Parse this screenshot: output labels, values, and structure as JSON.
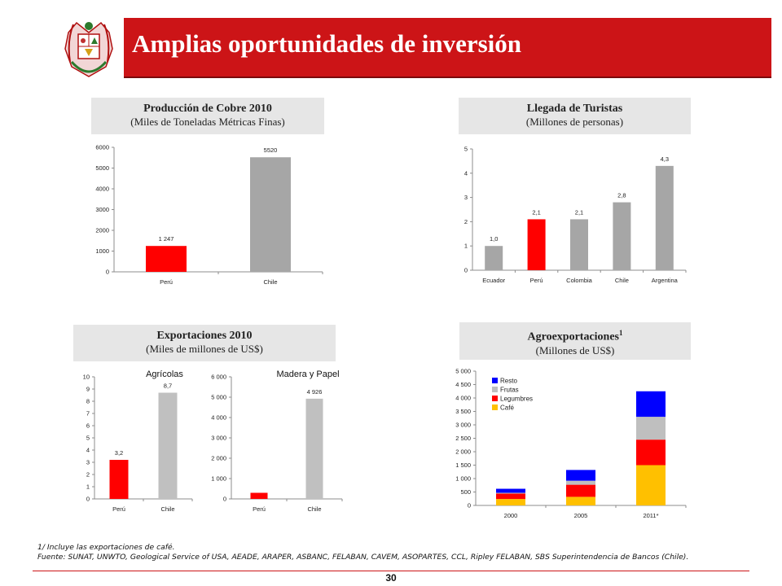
{
  "slide": {
    "title": "Amplias oportunidades de inversión",
    "page_number": "30",
    "footnote_1": "1/ Incluye las exportaciones de café.",
    "footnote_2": "Fuente: SUNAT, UNWTO, Geological Service of USA,  AEADE, ARAPER, ASBANC, FELABAN, CAVEM, ASOPARTES, CCL,  Ripley FELABAN, SBS Superintendencia de Bancos (Chile)."
  },
  "panels": {
    "copper": {
      "title": "Producción de Cobre 2010",
      "subtitle": "(Miles de Toneladas Métricas Finas)"
    },
    "tourists": {
      "title": "Llegada de Turistas",
      "subtitle": "(Millones de personas)"
    },
    "exports": {
      "title": "Exportaciones 2010",
      "subtitle": "(Miles de millones de US$)"
    },
    "agro": {
      "title": "Agroexportaciones",
      "title_sup": "1",
      "subtitle": "(Millones de US$)"
    }
  },
  "colors": {
    "header_red": "#cc1417",
    "peru_bar": "#ff0000",
    "other_bar": "#a6a6a6",
    "panel_gray": "#e6e6e6"
  },
  "chart_data": [
    {
      "id": "copper",
      "type": "bar",
      "title": "Producción de Cobre 2010",
      "subtitle": "(Miles de Toneladas Métricas Finas)",
      "categories": [
        "Perú",
        "Chile"
      ],
      "values": [
        1247,
        5520
      ],
      "value_labels": [
        "1 247",
        "5520"
      ],
      "bar_colors": [
        "#ff0000",
        "#a6a6a6"
      ],
      "ylim": [
        0,
        6000
      ],
      "yticks": [
        0,
        1000,
        2000,
        3000,
        4000,
        5000,
        6000
      ],
      "ytick_labels": [
        "0",
        "1000",
        "2000",
        "3000",
        "4000",
        "5000",
        "6000"
      ],
      "grid": false
    },
    {
      "id": "tourists",
      "type": "bar",
      "title": "Llegada de Turistas",
      "subtitle": "(Millones de personas)",
      "categories": [
        "Ecuador",
        "Perú",
        "Colombia",
        "Chile",
        "Argentina"
      ],
      "values": [
        1.0,
        2.1,
        2.1,
        2.8,
        4.3
      ],
      "value_labels": [
        "1,0",
        "2,1",
        "2,1",
        "2,8",
        "4,3"
      ],
      "bar_colors": [
        "#a6a6a6",
        "#ff0000",
        "#a6a6a6",
        "#a6a6a6",
        "#a6a6a6"
      ],
      "ylim": [
        0,
        5
      ],
      "yticks": [
        0,
        1,
        2,
        3,
        4,
        5
      ],
      "ytick_labels": [
        "0",
        "1",
        "2",
        "3",
        "4",
        "5"
      ],
      "grid": false
    },
    {
      "id": "exports_agricolas",
      "type": "bar",
      "title": "Agrícolas",
      "categories": [
        "Perú",
        "Chile"
      ],
      "values": [
        3.2,
        8.7
      ],
      "value_labels": [
        "3,2",
        "8,7"
      ],
      "bar_colors": [
        "#ff0000",
        "#c0c0c0"
      ],
      "ylim": [
        0,
        10
      ],
      "yticks": [
        0,
        1,
        2,
        3,
        4,
        5,
        6,
        7,
        8,
        9,
        10
      ],
      "ytick_labels": [
        "0",
        "1",
        "2",
        "3",
        "4",
        "5",
        "6",
        "7",
        "8",
        "9",
        "10"
      ],
      "grid": false
    },
    {
      "id": "exports_madera",
      "type": "bar",
      "title": "Madera y Papel",
      "categories": [
        "Perú",
        "Chile"
      ],
      "values": [
        300,
        4926
      ],
      "value_labels": [
        "",
        "4 926"
      ],
      "bar_colors": [
        "#ff0000",
        "#c0c0c0"
      ],
      "ylim": [
        0,
        6000
      ],
      "yticks": [
        0,
        1000,
        2000,
        3000,
        4000,
        5000,
        6000
      ],
      "ytick_labels": [
        "0",
        "1 000",
        "2 000",
        "3 000",
        "4 000",
        "5 000",
        "6 000"
      ],
      "grid": false
    },
    {
      "id": "agro",
      "type": "bar",
      "stacked": true,
      "title": "Agroexportaciones",
      "subtitle": "(Millones de US$)",
      "categories": [
        "2000",
        "2005",
        "2011*"
      ],
      "series": [
        {
          "name": "Café",
          "color": "#ffc000",
          "values": [
            240,
            320,
            1500
          ]
        },
        {
          "name": "Legumbres",
          "color": "#ff0000",
          "values": [
            200,
            450,
            950
          ]
        },
        {
          "name": "Frutas",
          "color": "#bfbfbf",
          "values": [
            30,
            150,
            850
          ]
        },
        {
          "name": "Resto",
          "color": "#0000ff",
          "values": [
            150,
            400,
            950
          ]
        }
      ],
      "legend_order": [
        "Resto",
        "Frutas",
        "Legumbres",
        "Café"
      ],
      "legend_position": "top-left",
      "ylim": [
        0,
        5000
      ],
      "yticks": [
        0,
        500,
        1000,
        1500,
        2000,
        2500,
        3000,
        3500,
        4000,
        4500,
        5000
      ],
      "ytick_labels": [
        "0",
        "500",
        "1 000",
        "1 500",
        "2 000",
        "2 500",
        "3 000",
        "3 500",
        "4 000",
        "4 500",
        "5 000"
      ],
      "grid": false
    }
  ]
}
